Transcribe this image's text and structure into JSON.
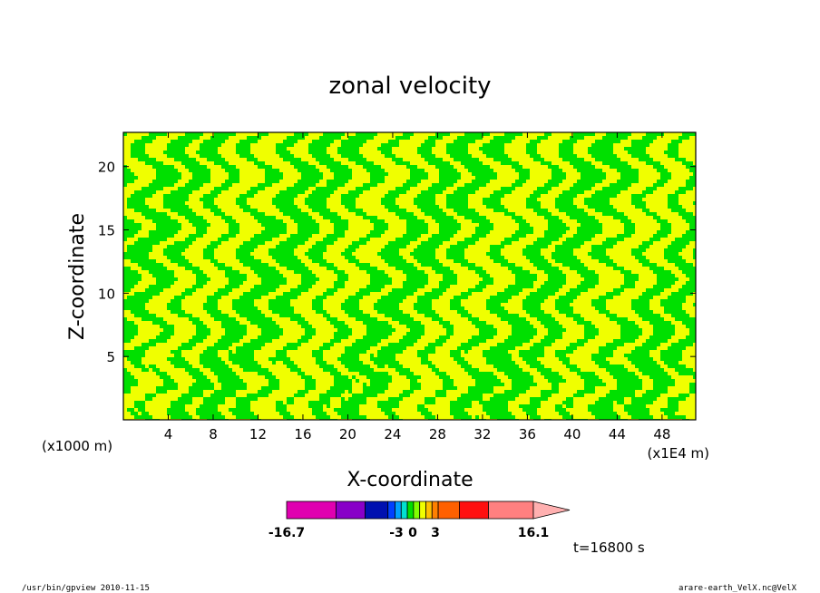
{
  "chart_data": {
    "type": "heatmap",
    "title": "zonal velocity",
    "xlabel": "X-coordinate",
    "ylabel": "Z-coordinate",
    "x_unit_left": "(x1000 m)",
    "x_unit_right": "(x1E4 m)",
    "xlim": [
      0,
      51
    ],
    "ylim": [
      0,
      22.7
    ],
    "x_ticks": [
      4,
      8,
      12,
      16,
      20,
      24,
      28,
      32,
      36,
      40,
      44,
      48
    ],
    "y_ticks": [
      5,
      10,
      15,
      20
    ],
    "grid": false,
    "colors": {
      "positive": "#f0ff00",
      "negative": "#00e000",
      "contour": "#1a1a60"
    },
    "colorbar": {
      "colors": [
        "#e000b0",
        "#8800c8",
        "#0010b0",
        "#0040ff",
        "#00a0ff",
        "#00e0d0",
        "#00e000",
        "#80ff00",
        "#f0ff00",
        "#ffc000",
        "#ff8000",
        "#ff6000",
        "#ff1010",
        "#ff8080",
        "#ffb0b0"
      ],
      "labels": [
        "-16.7",
        "-3",
        "0",
        "3",
        "16.1"
      ],
      "label_values": [
        -16.7,
        -3,
        0,
        3,
        16.1
      ],
      "min": -16.7,
      "max": 16.1
    },
    "time_label": "t=16800 s"
  },
  "footer": {
    "left": "/usr/bin/gpview   2010-11-15",
    "right": "arare-earth_VelX.nc@VelX"
  }
}
